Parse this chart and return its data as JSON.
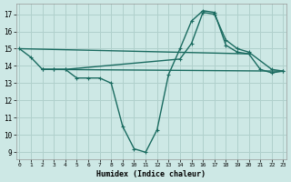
{
  "xlabel": "Humidex (Indice chaleur)",
  "bg_color": "#cde8e5",
  "grid_color": "#b0d0cc",
  "line_color": "#1a6b60",
  "xlim": [
    -0.3,
    23.3
  ],
  "ylim": [
    8.6,
    17.6
  ],
  "xticks": [
    0,
    1,
    2,
    3,
    4,
    5,
    6,
    7,
    8,
    9,
    10,
    11,
    12,
    13,
    14,
    15,
    16,
    17,
    18,
    19,
    20,
    21,
    22,
    23
  ],
  "yticks": [
    9,
    10,
    11,
    12,
    13,
    14,
    15,
    16,
    17
  ],
  "series": [
    {
      "x": [
        0,
        1,
        2,
        3,
        4,
        5,
        6,
        7,
        8,
        9,
        10,
        11,
        12,
        13,
        14,
        15,
        16,
        17,
        18,
        19,
        20,
        21,
        22,
        23
      ],
      "y": [
        15.0,
        14.5,
        13.8,
        13.8,
        13.8,
        13.3,
        13.3,
        13.3,
        13.0,
        10.5,
        9.2,
        9.0,
        10.3,
        13.5,
        15.0,
        16.6,
        17.2,
        17.1,
        15.2,
        14.8,
        14.7,
        13.8,
        13.6,
        13.7
      ],
      "markers": true
    },
    {
      "x": [
        2,
        3,
        4,
        14,
        15,
        16,
        17,
        18,
        19,
        20,
        22,
        23
      ],
      "y": [
        13.8,
        13.8,
        13.8,
        14.4,
        15.3,
        17.1,
        17.0,
        15.5,
        15.0,
        14.8,
        13.8,
        13.7
      ],
      "markers": true
    },
    {
      "x": [
        2,
        23
      ],
      "y": [
        13.8,
        13.7
      ],
      "markers": false
    },
    {
      "comment": "Diagonal line from x=0 (15.0) to x=20 (14.7)",
      "x": [
        0,
        20
      ],
      "y": [
        15.0,
        14.7
      ],
      "markers": false
    }
  ],
  "linewidth": 1.0,
  "markersize": 3.5
}
